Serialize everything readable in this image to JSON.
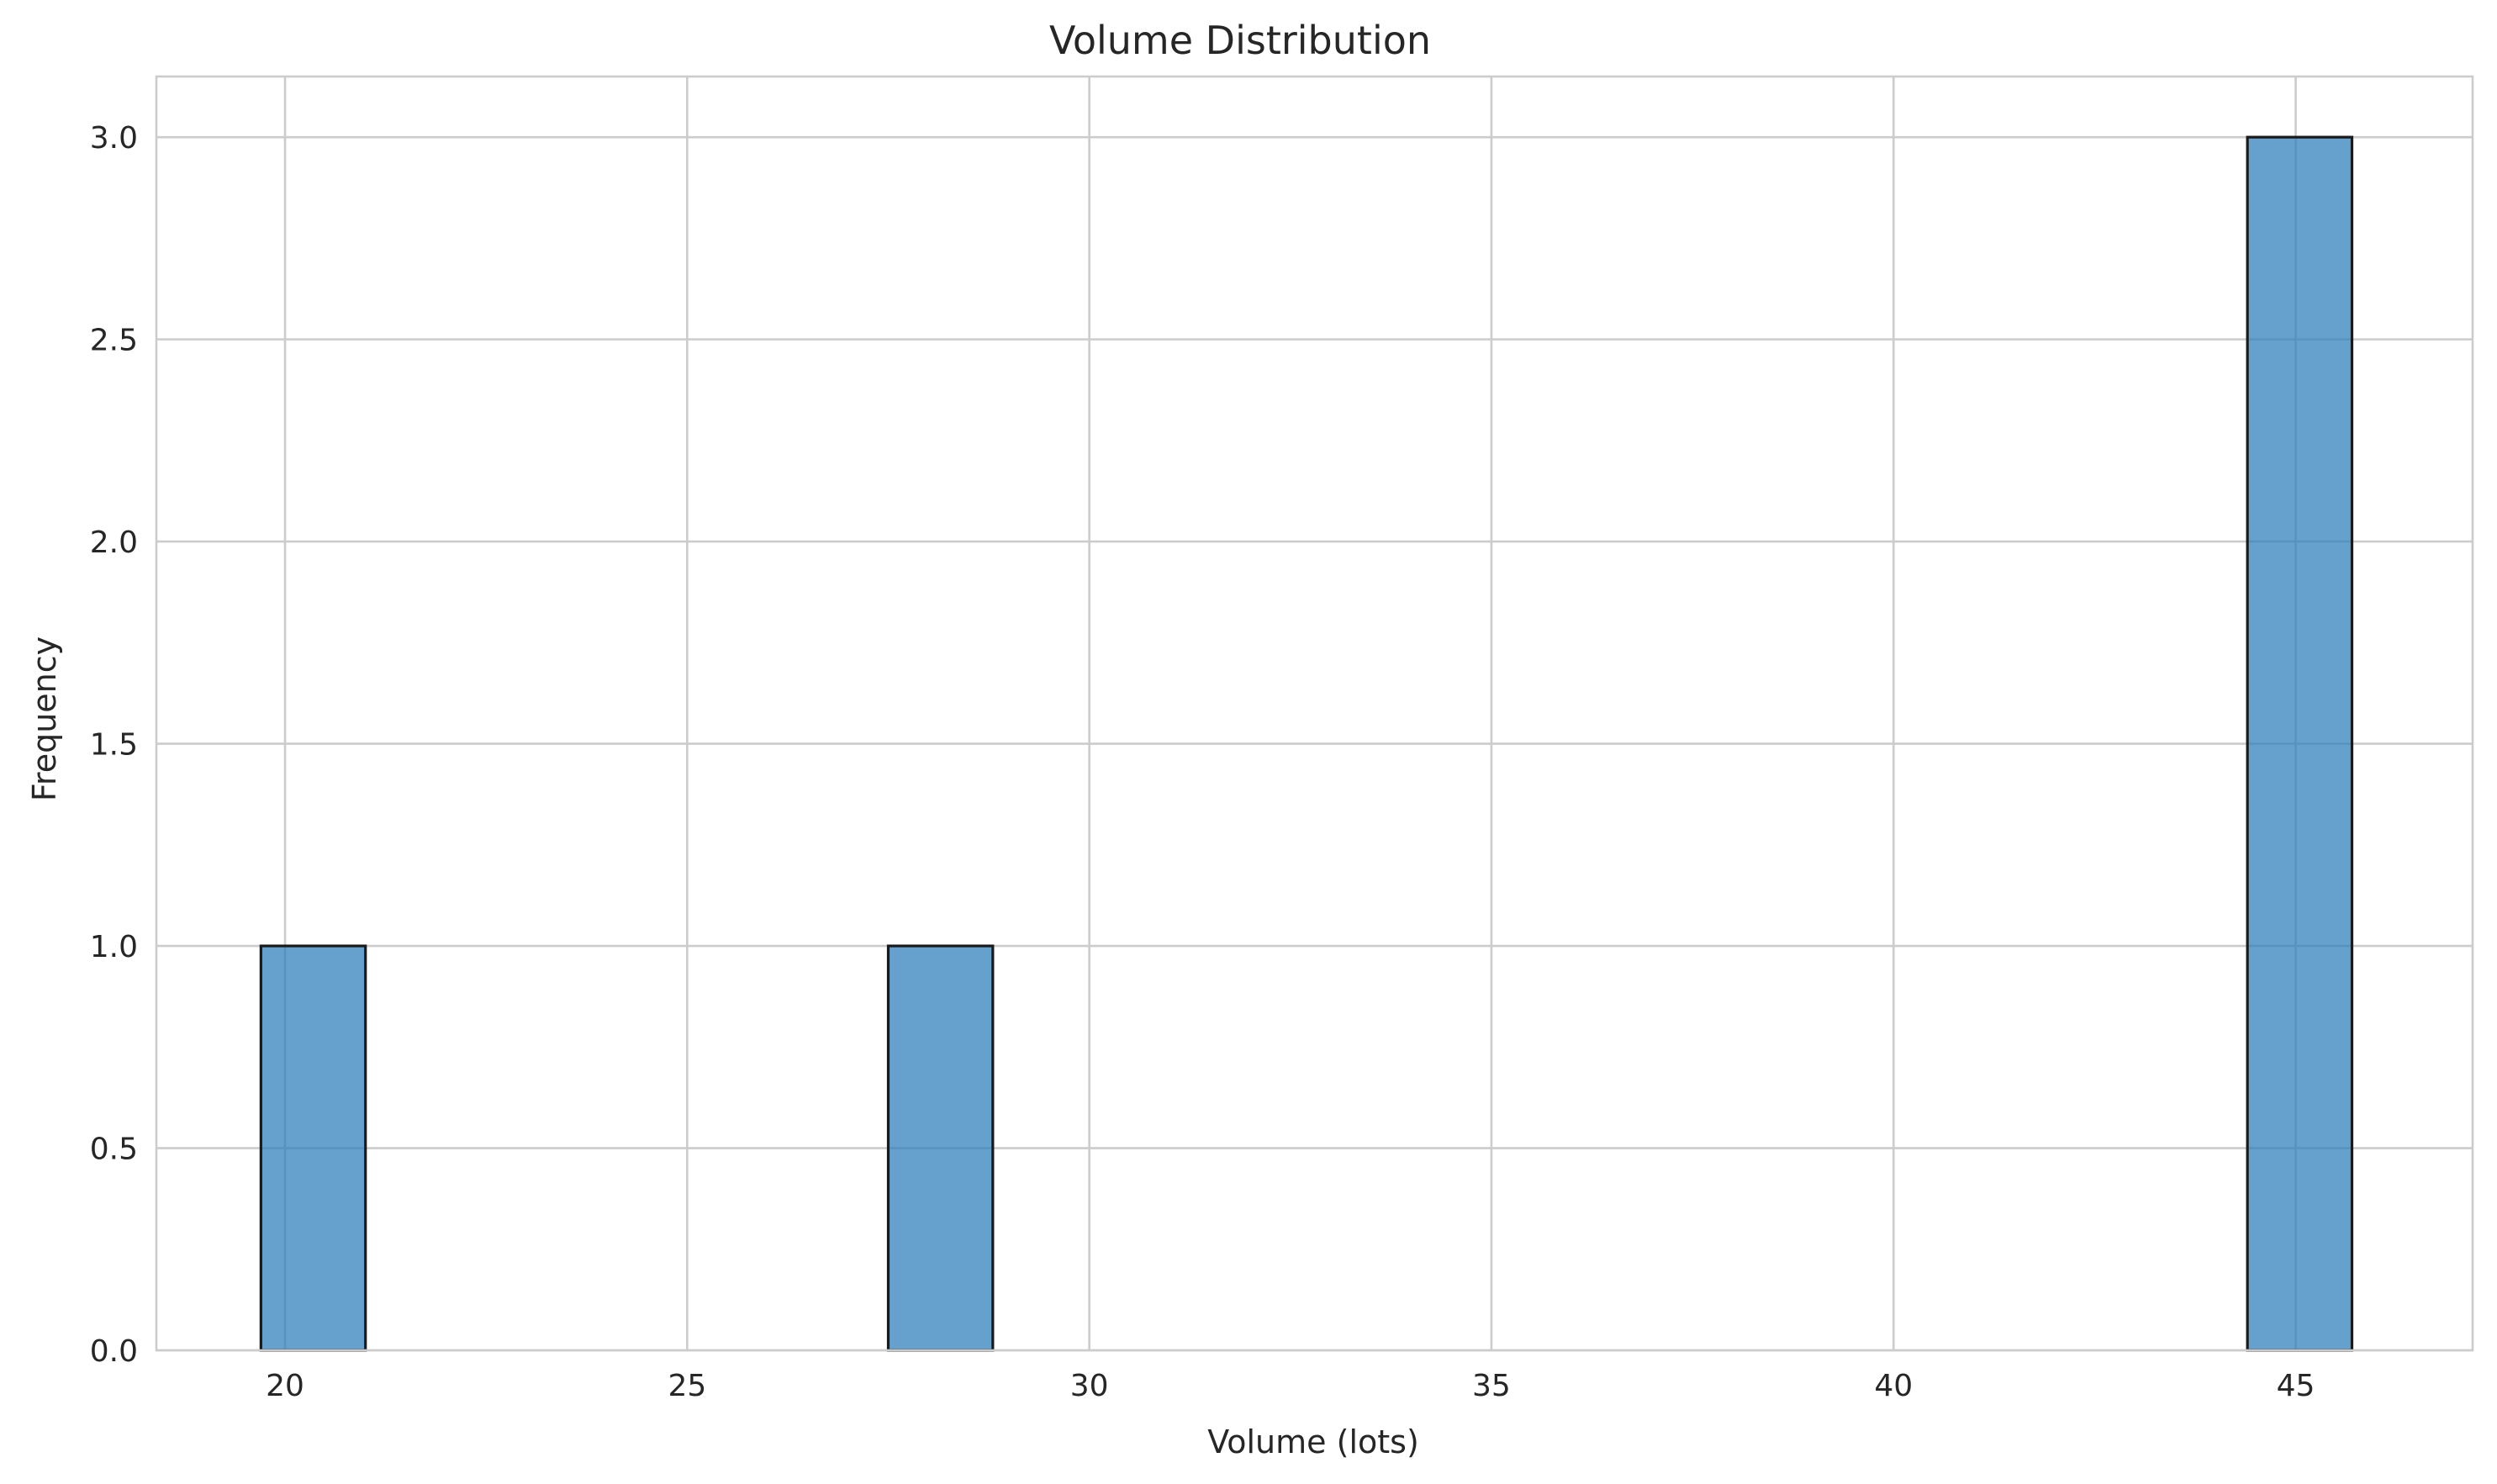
{
  "chart_data": {
    "type": "bar",
    "subtype": "histogram",
    "title": "Volume Distribution",
    "xlabel": "Volume (lots)",
    "ylabel": "Frequency",
    "xlim": [
      18.4,
      47.2
    ],
    "ylim": [
      0,
      3.15
    ],
    "xticks": [
      20,
      25,
      30,
      35,
      40,
      45
    ],
    "yticks": [
      0.0,
      0.5,
      1.0,
      1.5,
      2.0,
      2.5,
      3.0
    ],
    "xtick_labels": [
      "20",
      "25",
      "30",
      "35",
      "40",
      "45"
    ],
    "ytick_labels": [
      "0.0",
      "0.5",
      "1.0",
      "1.5",
      "2.0",
      "2.5",
      "3.0"
    ],
    "bin_edges": [
      19.7,
      21.0,
      22.3,
      23.6,
      24.9,
      26.2,
      27.5,
      28.8,
      30.1,
      31.4,
      32.7,
      34.0,
      35.3,
      36.6,
      37.9,
      39.2,
      40.5,
      41.8,
      43.1,
      44.4,
      45.7
    ],
    "counts": [
      1,
      0,
      0,
      0,
      0,
      0,
      1,
      0,
      0,
      0,
      0,
      0,
      0,
      0,
      0,
      0,
      0,
      0,
      0,
      3
    ],
    "grid": true,
    "legend": "none",
    "colors": {
      "bar_fill": "#2b7bba",
      "bar_edge": "#1a1a1a",
      "grid": "#cccccc",
      "spine": "#cccccc",
      "text": "#262626"
    }
  }
}
